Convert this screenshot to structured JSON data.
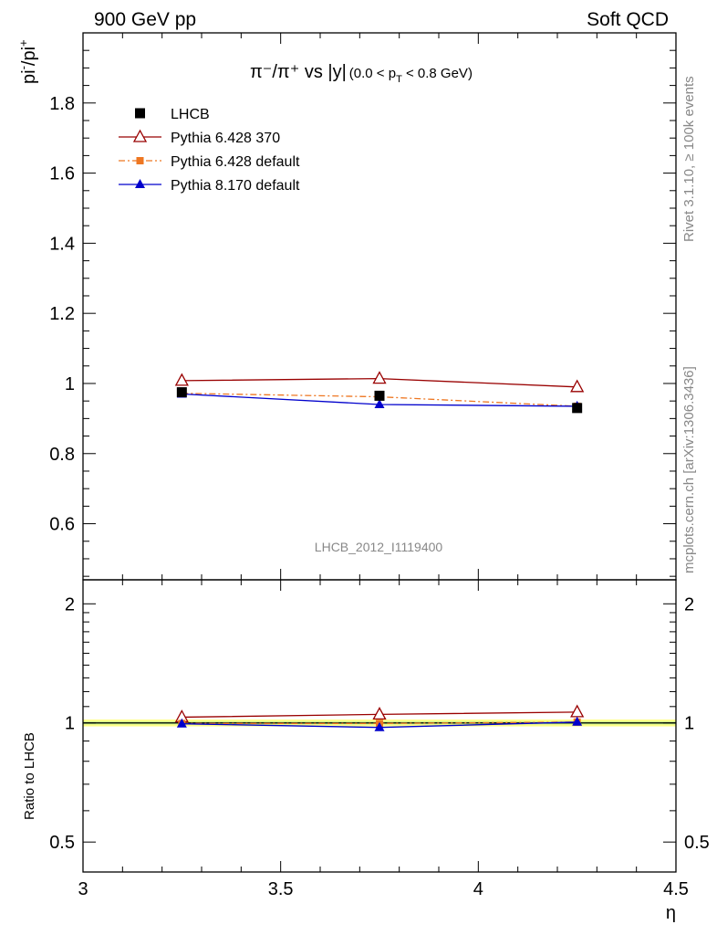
{
  "header": {
    "left": "900 GeV pp",
    "right": "Soft QCD"
  },
  "side_labels": {
    "rivet": "Rivet 3.1.10, ≥ 100k events",
    "mcplots": "mcplots.cern.ch [arXiv:1306.3436]"
  },
  "chart_data": [
    {
      "type": "line",
      "title_main": "π⁻/π⁺ vs |y|",
      "title_cut_pre": "(0.0 < p",
      "title_cut_sub": "T",
      "title_cut_post": " < 0.8 GeV)",
      "ylabel_base": "pi",
      "ylabel_sup1": "-",
      "ylabel_mid": "/pi",
      "ylabel_sup2": "+",
      "watermark": "LHCB_2012_I1119400",
      "xlim": [
        3.0,
        4.5
      ],
      "ylim": [
        0.44,
        2.0
      ],
      "xticks": [
        "3",
        "3.5",
        "4",
        "4.5"
      ],
      "yticks": [
        "0.6",
        "0.8",
        "1",
        "1.2",
        "1.4",
        "1.6",
        "1.8"
      ],
      "ytick_values": [
        0.6,
        0.8,
        1.0,
        1.2,
        1.4,
        1.6,
        1.8
      ],
      "x": [
        3.25,
        3.75,
        4.25
      ],
      "legend_position": "top-left",
      "series": [
        {
          "name": "LHCB",
          "values": [
            0.975,
            0.965,
            0.93
          ],
          "color": "#000000",
          "marker": "square",
          "line": "none"
        },
        {
          "name": "Pythia 6.428 370",
          "values": [
            1.008,
            1.014,
            0.99
          ],
          "color": "#990000",
          "marker": "open-triangle",
          "line": "solid"
        },
        {
          "name": "Pythia 6.428 default",
          "values": [
            0.972,
            0.962,
            0.935
          ],
          "color": "#ee7722",
          "marker": "small-square",
          "line": "dashdot"
        },
        {
          "name": "Pythia 8.170 default",
          "values": [
            0.97,
            0.94,
            0.935
          ],
          "color": "#0000cc",
          "marker": "triangle",
          "line": "solid"
        }
      ]
    },
    {
      "type": "line",
      "ylabel": "Ratio to LHCB",
      "xlabel": "η",
      "xlim": [
        3.0,
        4.5
      ],
      "ylim": [
        0.42,
        2.3
      ],
      "log_y": true,
      "xticks": [
        "3",
        "3.5",
        "4",
        "4.5"
      ],
      "yticks": [
        "0.5",
        "1",
        "2"
      ],
      "ytick_values": [
        0.5,
        1,
        2
      ],
      "x": [
        3.25,
        3.75,
        4.25
      ],
      "band_color": "#ffff88",
      "band_inner_color": "#bbee88",
      "series": [
        {
          "name": "Pythia 6.428 370",
          "values": [
            1.034,
            1.051,
            1.065
          ],
          "color": "#990000"
        },
        {
          "name": "Pythia 6.428 default",
          "values": [
            0.997,
            0.997,
            1.005
          ],
          "color": "#ee7722"
        },
        {
          "name": "Pythia 8.170 default",
          "values": [
            0.995,
            0.974,
            1.005
          ],
          "color": "#0000cc"
        }
      ]
    }
  ]
}
